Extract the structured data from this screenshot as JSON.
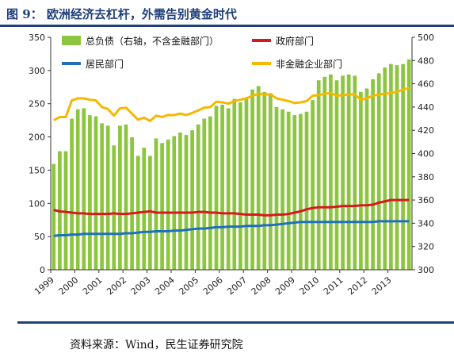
{
  "figure": {
    "title": "图 9： 欧洲经济去杠杆，外需告别黄金时代",
    "source": "资料来源：Wind，民生证券研究院"
  },
  "chart_data": {
    "type": "bar+line",
    "legend_placement": "top",
    "grid": false,
    "colors": {
      "bars": "#8cc63e",
      "government": "#d7191c",
      "nonfinancial_corporate": "#f5b800",
      "household": "#1f6fbf"
    },
    "left_axis": {
      "ylim": [
        0,
        350
      ],
      "ticks": [
        0,
        50,
        100,
        150,
        200,
        250,
        300,
        350
      ]
    },
    "right_axis": {
      "ylim": [
        300,
        500
      ],
      "ticks": [
        300,
        320,
        340,
        360,
        380,
        400,
        420,
        440,
        460,
        480,
        500
      ]
    },
    "x": {
      "start": "1999Q1",
      "periods": 60,
      "frequency": "quarterly",
      "tick_labels": [
        "1999",
        "2000",
        "2001",
        "2002",
        "2003",
        "2004",
        "2005",
        "2006",
        "2007",
        "2008",
        "2009",
        "2010",
        "2011",
        "2012",
        "2013"
      ]
    },
    "series": [
      {
        "name": "总负债（右轴，不含金融部门）",
        "kind": "bar",
        "axis": "right",
        "color": "#8cc63e",
        "values": [
          391,
          402,
          402,
          430,
          438,
          439,
          433,
          432,
          426,
          424,
          407,
          424,
          425,
          414,
          398,
          405,
          398,
          413,
          409,
          412,
          415,
          418,
          416,
          420,
          425,
          430,
          432,
          441,
          442,
          439,
          447,
          444,
          448,
          455,
          458,
          453,
          452,
          440,
          438,
          436,
          433,
          434,
          436,
          446,
          463,
          466,
          468,
          463,
          467,
          468,
          467,
          453,
          456,
          464,
          469,
          474,
          477,
          476,
          477,
          481
        ]
      },
      {
        "name": "政府部门",
        "kind": "line",
        "axis": "left",
        "color": "#d7191c",
        "values": [
          90,
          88,
          87,
          86,
          85,
          85,
          84,
          84,
          84,
          84,
          85,
          84,
          84,
          85,
          86,
          87,
          88,
          86,
          86,
          86,
          86,
          86,
          86,
          86,
          87,
          87,
          86,
          86,
          85,
          85,
          85,
          84,
          83,
          83,
          83,
          82,
          82,
          83,
          83,
          84,
          86,
          88,
          91,
          93,
          94,
          94,
          94,
          95,
          96,
          96,
          96,
          97,
          97,
          98,
          101,
          103,
          105,
          105,
          105,
          105
        ]
      },
      {
        "name": "居民部门",
        "kind": "line",
        "axis": "left",
        "color": "#1f6fbf",
        "values": [
          51,
          52,
          52,
          53,
          53,
          54,
          54,
          54,
          54,
          54,
          54,
          54,
          55,
          55,
          56,
          57,
          57,
          58,
          58,
          58,
          59,
          59,
          60,
          61,
          62,
          62,
          63,
          64,
          64,
          65,
          65,
          65,
          66,
          66,
          66,
          67,
          67,
          68,
          69,
          70,
          71,
          72,
          72,
          72,
          72,
          72,
          72,
          72,
          72,
          72,
          72,
          72,
          72,
          72,
          73,
          73,
          73,
          73,
          73,
          73
        ]
      },
      {
        "name": "非金融企业部门",
        "kind": "line",
        "axis": "left",
        "color": "#f5b800",
        "values": [
          225,
          230,
          230,
          255,
          258,
          258,
          256,
          255,
          245,
          242,
          232,
          243,
          244,
          235,
          226,
          229,
          224,
          232,
          230,
          233,
          233,
          235,
          233,
          236,
          240,
          244,
          245,
          253,
          252,
          250,
          254,
          256,
          258,
          262,
          265,
          264,
          264,
          258,
          256,
          254,
          251,
          252,
          254,
          262,
          263,
          265,
          266,
          262,
          263,
          264,
          264,
          256,
          258,
          262,
          264,
          265,
          266,
          268,
          271,
          274
        ]
      }
    ]
  }
}
